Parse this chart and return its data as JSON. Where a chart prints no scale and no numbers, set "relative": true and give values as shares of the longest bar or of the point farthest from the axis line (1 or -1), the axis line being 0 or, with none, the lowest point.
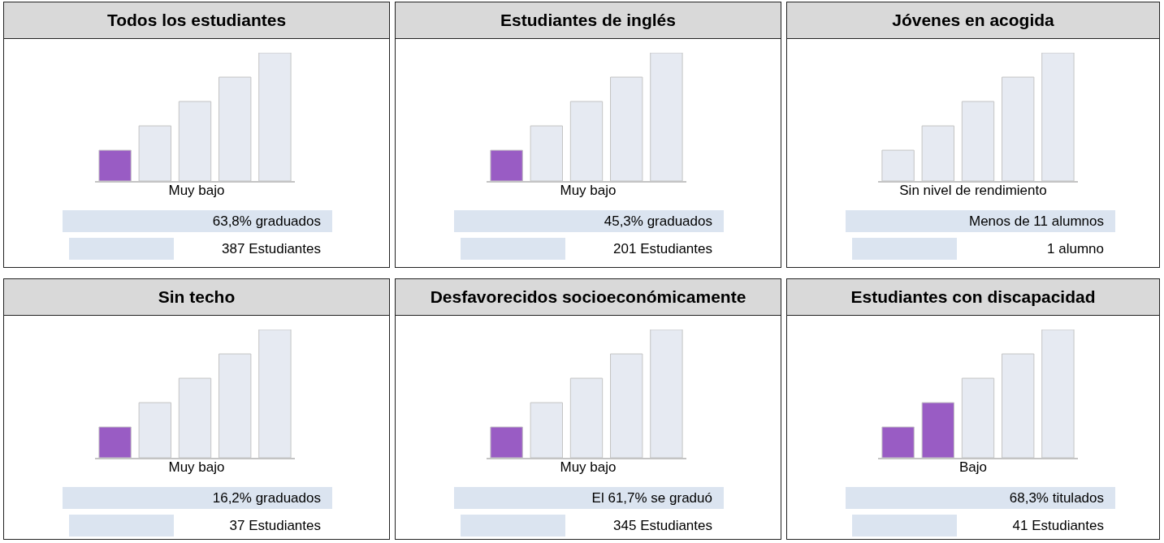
{
  "chart_data": [
    {
      "type": "bar",
      "title": "Todos los estudiantes",
      "categories": [
        null,
        null,
        null,
        null,
        null
      ],
      "values": [
        0.24,
        0.43,
        0.62,
        0.81,
        1
      ],
      "relative": true,
      "colors": [
        "#995cc4",
        "#e6eaf2",
        "#e6eaf2",
        "#e6eaf2",
        "#e6eaf2"
      ],
      "annotations": [
        "Muy bajo",
        "63,8% graduados",
        "387 Estudiantes"
      ]
    },
    {
      "type": "bar",
      "title": "Estudiantes de inglés",
      "categories": [
        null,
        null,
        null,
        null,
        null
      ],
      "values": [
        0.24,
        0.43,
        0.62,
        0.81,
        1
      ],
      "relative": true,
      "colors": [
        "#995cc4",
        "#e6eaf2",
        "#e6eaf2",
        "#e6eaf2",
        "#e6eaf2"
      ],
      "annotations": [
        "Muy bajo",
        "45,3% graduados",
        "201 Estudiantes"
      ]
    },
    {
      "type": "bar",
      "title": "Jóvenes en acogida",
      "categories": [
        null,
        null,
        null,
        null,
        null
      ],
      "values": [
        0.24,
        0.43,
        0.62,
        0.81,
        1
      ],
      "relative": true,
      "colors": [
        "#e6eaf2",
        "#e6eaf2",
        "#e6eaf2",
        "#e6eaf2",
        "#e6eaf2"
      ],
      "annotations": [
        "Sin nivel de rendimiento",
        "Menos de 11 alumnos",
        "1 alumno"
      ]
    },
    {
      "type": "bar",
      "title": "Sin techo",
      "categories": [
        null,
        null,
        null,
        null,
        null
      ],
      "values": [
        0.24,
        0.43,
        0.62,
        0.81,
        1
      ],
      "relative": true,
      "colors": [
        "#995cc4",
        "#e6eaf2",
        "#e6eaf2",
        "#e6eaf2",
        "#e6eaf2"
      ],
      "annotations": [
        "Muy bajo",
        "16,2% graduados",
        "37 Estudiantes"
      ]
    },
    {
      "type": "bar",
      "title": "Desfavorecidos socioeconómicamente",
      "categories": [
        null,
        null,
        null,
        null,
        null
      ],
      "values": [
        0.24,
        0.43,
        0.62,
        0.81,
        1
      ],
      "relative": true,
      "colors": [
        "#995cc4",
        "#e6eaf2",
        "#e6eaf2",
        "#e6eaf2",
        "#e6eaf2"
      ],
      "annotations": [
        "Muy bajo",
        "El 61,7% se graduó",
        "345 Estudiantes"
      ]
    },
    {
      "type": "bar",
      "title": "Estudiantes con discapacidad",
      "categories": [
        null,
        null,
        null,
        null,
        null
      ],
      "values": [
        0.24,
        0.43,
        0.62,
        0.81,
        1
      ],
      "relative": true,
      "colors": [
        "#995cc4",
        "#995cc4",
        "#e6eaf2",
        "#e6eaf2",
        "#e6eaf2"
      ],
      "annotations": [
        "Bajo",
        "68,3% titulados",
        "41 Estudiantes"
      ]
    }
  ]
}
